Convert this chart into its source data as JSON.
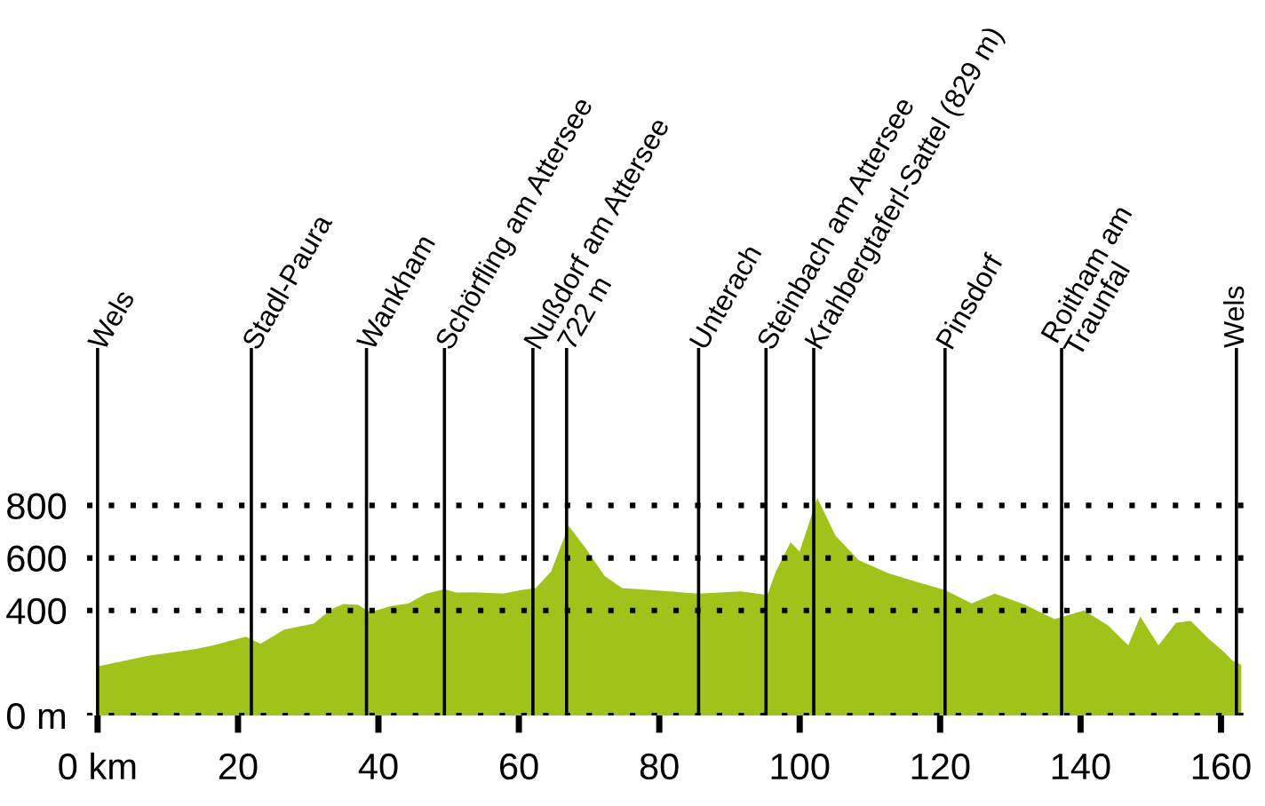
{
  "chart_data": {
    "type": "area",
    "color": "#9fc31b",
    "x": [
      0,
      7.2,
      13.9,
      16.5,
      21.1,
      23.2,
      26.6,
      30.8,
      33.3,
      35.0,
      37.1,
      38.8,
      41.8,
      44.3,
      46.8,
      49.4,
      51.1,
      53.6,
      57.8,
      60.3,
      62.4,
      64.6,
      67.1,
      69.6,
      72.2,
      74.7,
      78.9,
      85.6,
      91.6,
      95.4,
      96.6,
      98.7,
      100.0,
      102.5,
      105.1,
      108.4,
      112.7,
      116.9,
      120.7,
      124.5,
      127.8,
      132.1,
      136.3,
      140.5,
      143.9,
      146.8,
      148.5,
      151.1,
      153.6,
      155.7,
      158.2,
      160.4,
      161.6,
      162.9
    ],
    "values": [
      187,
      227,
      253,
      267,
      300,
      273,
      327,
      350,
      405,
      424,
      422,
      393,
      417,
      427,
      464,
      481,
      468,
      469,
      464,
      478,
      485,
      549,
      722,
      634,
      532,
      485,
      478,
      464,
      473,
      459,
      549,
      659,
      625,
      829,
      685,
      592,
      541,
      507,
      478,
      427,
      464,
      422,
      367,
      400,
      343,
      267,
      377,
      267,
      353,
      360,
      293,
      243,
      210,
      193
    ],
    "xlim": [
      -1.5,
      164.5
    ],
    "ylim": [
      0,
      1400
    ],
    "xticks": [
      {
        "value": 0,
        "label": "0 km"
      },
      20,
      40,
      60,
      80,
      100,
      120,
      140,
      160
    ],
    "yticks": [
      {
        "value": 0,
        "label": "0 m"
      },
      400,
      600,
      800
    ],
    "grid": "y",
    "ref_lines": [
      {
        "axis": "x",
        "value": 0,
        "label": "Wels"
      },
      {
        "axis": "x",
        "value": 21.9,
        "label": "Stadl-Paura"
      },
      {
        "axis": "x",
        "value": 38.3,
        "label": "Wankham"
      },
      {
        "axis": "x",
        "value": 49.4,
        "label": "Schörfling am Attersee"
      },
      {
        "axis": "x",
        "value": 62.0,
        "label": "Nußdorf am Attersee"
      },
      {
        "axis": "x",
        "value": 66.8,
        "label": "722 m"
      },
      {
        "axis": "x",
        "value": 85.6,
        "label": "Unterach"
      },
      {
        "axis": "x",
        "value": 95.2,
        "label": "Steinbach am Attersee"
      },
      {
        "axis": "x",
        "value": 102.0,
        "label": "Krahbergtaferl-Sattel (829 m)"
      },
      {
        "axis": "x",
        "value": 120.7,
        "label": "Pinsdorf"
      },
      {
        "axis": "x",
        "value": 137.3,
        "label": "Roitham am\nTraunfal"
      },
      {
        "axis": "x",
        "value": 162.2,
        "label": "Wels"
      }
    ]
  }
}
